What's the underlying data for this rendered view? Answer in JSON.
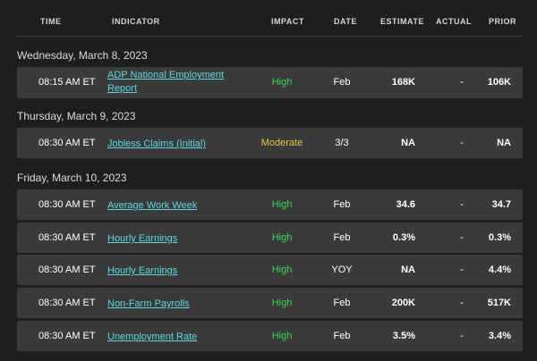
{
  "header": {
    "time": "TIME",
    "indicator": "INDICATOR",
    "impact": "IMPACT",
    "date": "DATE",
    "estimate": "ESTIMATE",
    "actual": "ACTUAL",
    "prior": "PRIOR"
  },
  "days": [
    "Wednesday, March 8, 2023",
    "Thursday, March 9, 2023",
    "Friday, March 10, 2023"
  ],
  "rows": [
    {
      "time": "08:15 AM ET",
      "indicator_line1": "ADP National Employment",
      "indicator_line2": "Report",
      "impact": "High",
      "date": "Feb",
      "estimate": "168K",
      "actual": "-",
      "prior": "106K"
    },
    {
      "time": "08:30 AM ET",
      "indicator": "Jobless Claims (Initial)",
      "impact": "Moderate",
      "date": "3/3",
      "estimate": "NA",
      "actual": "-",
      "prior": "NA"
    },
    {
      "time": "08:30 AM ET",
      "indicator": "Average Work Week",
      "impact": "High",
      "date": "Feb",
      "estimate": "34.6",
      "actual": "-",
      "prior": "34.7"
    },
    {
      "time": "08:30 AM ET",
      "indicator": "Hourly Earnings",
      "impact": "High",
      "date": "Feb",
      "estimate": "0.3%",
      "actual": "-",
      "prior": "0.3%"
    },
    {
      "time": "08:30 AM ET",
      "indicator": "Hourly Earnings",
      "impact": "High",
      "date": "YOY",
      "estimate": "NA",
      "actual": "-",
      "prior": "4.4%"
    },
    {
      "time": "08:30 AM ET",
      "indicator": "Non-Farm Payrolls",
      "impact": "High",
      "date": "Feb",
      "estimate": "200K",
      "actual": "-",
      "prior": "517K"
    },
    {
      "time": "08:30 AM ET",
      "indicator": "Unemployment Rate",
      "impact": "High",
      "date": "Feb",
      "estimate": "3.5%",
      "actual": "-",
      "prior": "3.4%"
    }
  ],
  "colors": {
    "impact_high": "#3ed15a",
    "impact_moderate": "#f2c14e",
    "link": "#5fd6e0"
  }
}
